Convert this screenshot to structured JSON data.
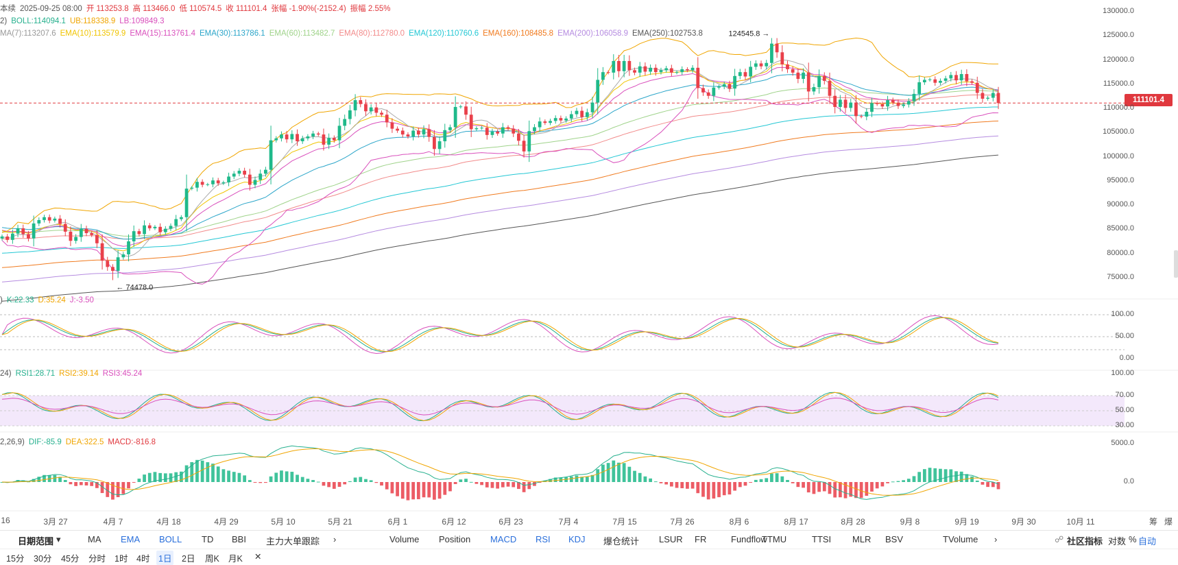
{
  "header": {
    "line1": [
      {
        "text": "本续",
        "color": "#555"
      },
      {
        "text": "2025-09-25 08:00",
        "color": "#555"
      },
      {
        "text": "开 113253.8",
        "color": "#e0383e"
      },
      {
        "text": "高 113466.0",
        "color": "#e0383e"
      },
      {
        "text": "低 110574.5",
        "color": "#e0383e"
      },
      {
        "text": "收 111101.4",
        "color": "#e0383e"
      },
      {
        "text": "张幅 -1.90%(-2152.4)",
        "color": "#e0383e"
      },
      {
        "text": "振幅 2.55%",
        "color": "#e0383e"
      }
    ],
    "line2": [
      {
        "text": "2)",
        "color": "#555"
      },
      {
        "text": "BOLL:114094.1",
        "color": "#26b08e"
      },
      {
        "text": "UB:118338.9",
        "color": "#f0a500"
      },
      {
        "text": "LB:109849.3",
        "color": "#d94fbc"
      }
    ],
    "line3": [
      {
        "text": "MA(7):113207.6",
        "color": "#999"
      },
      {
        "text": "EMA(10):113579.9",
        "color": "#f0c400"
      },
      {
        "text": "EMA(15):113761.4",
        "color": "#d94fbc"
      },
      {
        "text": "EMA(30):113786.1",
        "color": "#2aa5c9"
      },
      {
        "text": "EMA(60):113482.7",
        "color": "#9fd38a"
      },
      {
        "text": "EMA(80):112780.0",
        "color": "#f28a8a"
      },
      {
        "text": "EMA(120):110760.6",
        "color": "#22c7d4"
      },
      {
        "text": "EMA(160):108485.8",
        "color": "#f07a1e"
      },
      {
        "text": "EMA(200):106058.9",
        "color": "#b58be0"
      },
      {
        "text": "EMA(250):102753.8",
        "color": "#555"
      }
    ],
    "kdj": [
      {
        "text": ")",
        "color": "#555"
      },
      {
        "text": "K:22.33",
        "color": "#26b08e"
      },
      {
        "text": "D:35.24",
        "color": "#f0a500"
      },
      {
        "text": "J:-3.50",
        "color": "#d94fbc"
      }
    ],
    "rsi": [
      {
        "text": "24)",
        "color": "#555"
      },
      {
        "text": "RSI1:28.71",
        "color": "#26b08e"
      },
      {
        "text": "RSI2:39.14",
        "color": "#f0a500"
      },
      {
        "text": "RSI3:45.24",
        "color": "#d94fbc"
      }
    ],
    "macd": [
      {
        "text": "2,26,9)",
        "color": "#555"
      },
      {
        "text": "DIF:-85.9",
        "color": "#26b08e"
      },
      {
        "text": "DEA:322.5",
        "color": "#f0a500"
      },
      {
        "text": "MACD:-816.8",
        "color": "#e0383e"
      }
    ]
  },
  "price_axis": [
    "130000.0",
    "125000.0",
    "120000.0",
    "115000.0",
    "110000.0",
    "105000.0",
    "100000.0",
    "95000.0",
    "90000.0",
    "85000.0",
    "80000.0",
    "75000.0"
  ],
  "kdj_axis": [
    "100.00",
    "50.00",
    "0.00"
  ],
  "rsi_axis": [
    "100.00",
    "70.00",
    "50.00",
    "30.00"
  ],
  "macd_axis": [
    "5000.0",
    "0.0"
  ],
  "current_price": "111101.4",
  "annotations": {
    "high": "124545.8",
    "low": "74478.0"
  },
  "x_axis": [
    "16",
    "3月 27",
    "4月 7",
    "4月 18",
    "4月 29",
    "5月 10",
    "5月 21",
    "6月 1",
    "6月 12",
    "6月 23",
    "7月 4",
    "7月 15",
    "7月 26",
    "8月 6",
    "8月 17",
    "8月 28",
    "9月 8",
    "9月 19",
    "9月 30",
    "10月 11"
  ],
  "corner_labels": [
    "筹",
    "爆"
  ],
  "toolbar_indicators": {
    "range_label": "日期范围",
    "main": [
      "MA",
      "EMA",
      "BOLL",
      "TD",
      "BBI",
      "主力大单跟踪"
    ],
    "main_active": [
      "EMA",
      "BOLL"
    ],
    "sub": [
      "Volume",
      "Position",
      "MACD",
      "RSI",
      "KDJ",
      "爆仓统计",
      "LSUR",
      "FR",
      "Fundflow",
      "TTMU",
      "TTSI",
      "MLR",
      "BSV",
      "TVolume"
    ],
    "sub_active": [
      "MACD",
      "RSI",
      "KDJ"
    ],
    "right": [
      "社区指标",
      "对数",
      "%",
      "自动"
    ]
  },
  "toolbar_periods": {
    "items": [
      "15分",
      "30分",
      "45分",
      "分时",
      "1时",
      "4时",
      "1日",
      "2日",
      "周K",
      "月K"
    ],
    "selected": "1日",
    "close": "✕"
  },
  "colors": {
    "up": "#1fb98a",
    "down": "#e9404a",
    "accent": "#2a6fdb"
  },
  "chart_data": {
    "type": "candlestick",
    "symbol_interval": "1日",
    "last_close": 111101.4,
    "price_range": [
      72000,
      131000
    ],
    "y_axis_ticks": [
      130000,
      125000,
      120000,
      115000,
      110000,
      105000,
      100000,
      95000,
      90000,
      85000,
      80000,
      75000
    ],
    "high_marker": 124545.8,
    "low_marker": 74478.0,
    "start_date": "03-16",
    "end_date": "09-25",
    "closes": [
      83500,
      82800,
      84100,
      85200,
      84000,
      83100,
      86200,
      86900,
      87500,
      86800,
      87200,
      86100,
      84500,
      82600,
      83400,
      85100,
      84200,
      83800,
      82100,
      78500,
      77200,
      76400,
      79200,
      79800,
      82500,
      84600,
      84000,
      85800,
      85200,
      85500,
      84400,
      85100,
      85700,
      87100,
      87500,
      93400,
      93600,
      94800,
      94200,
      94300,
      95100,
      94500,
      94700,
      95900,
      96500,
      97100,
      96300,
      94200,
      95200,
      96500,
      97300,
      103400,
      103800,
      104600,
      103600,
      104700,
      103200,
      103800,
      104200,
      104800,
      104600,
      102500,
      103900,
      103400,
      106400,
      107800,
      109600,
      111700,
      110900,
      109400,
      110200,
      109100,
      108700,
      107100,
      105800,
      105400,
      104600,
      104200,
      105400,
      104600,
      105700,
      104100,
      101600,
      103200,
      105500,
      106100,
      110300,
      110400,
      108700,
      105700,
      105900,
      106000,
      104500,
      105200,
      104800,
      106100,
      105800,
      104800,
      103300,
      101100,
      105300,
      106100,
      107300,
      107000,
      107400,
      108000,
      107500,
      107900,
      108800,
      109500,
      108200,
      109200,
      111200,
      115900,
      117500,
      117400,
      119800,
      117700,
      119800,
      117900,
      117400,
      118700,
      117600,
      118400,
      117500,
      117900,
      118300,
      117400,
      117500,
      118100,
      117900,
      118400,
      114200,
      113300,
      112600,
      114300,
      114500,
      115000,
      114100,
      116700,
      117500,
      116600,
      118600,
      119300,
      118700,
      119400,
      123400,
      121600,
      119100,
      118100,
      117400,
      116100,
      117400,
      113500,
      114400,
      116700,
      115700,
      112600,
      110300,
      111800,
      110100,
      111200,
      108400,
      108300,
      109300,
      111100,
      110900,
      110400,
      111700,
      111200,
      110500,
      110800,
      111500,
      113000,
      115400,
      115900,
      116000,
      115300,
      115700,
      116200,
      116900,
      115800,
      117100,
      115600,
      115300,
      113200,
      112000,
      112200,
      113200,
      111101
    ]
  }
}
